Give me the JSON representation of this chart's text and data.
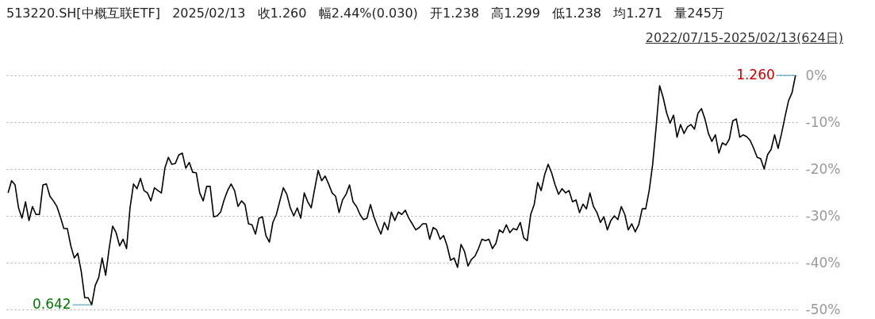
{
  "chart_data": {
    "type": "line",
    "title": "513220.SH[中概互联ETF]   2025/02/13   收1.260   幅2.44%(0.030)   开1.238   高1.299   低1.238   均1.271   量245万",
    "subtitle": "2022/07/15-2025/02/13(624日)",
    "categories": [
      null,
      null,
      null,
      null,
      null,
      null,
      null,
      null,
      null,
      null,
      null,
      null,
      null,
      null,
      null,
      null,
      null,
      null,
      null,
      null,
      null,
      null,
      null,
      null,
      null,
      null,
      null,
      null,
      null,
      null,
      null,
      null,
      null,
      null,
      null,
      null,
      null,
      null,
      null,
      null,
      null,
      null,
      null,
      null,
      null,
      null,
      null,
      null,
      null,
      null,
      null,
      null,
      null,
      null,
      null,
      null,
      null,
      null,
      null,
      null,
      null,
      null,
      null,
      null,
      null,
      null,
      null,
      null,
      null,
      null,
      null,
      null,
      null,
      null,
      null,
      null,
      null,
      null,
      null,
      null,
      null,
      null,
      null,
      null,
      null,
      null,
      null,
      null,
      null,
      null,
      null,
      null,
      null,
      null,
      null,
      null,
      null,
      null,
      null,
      null,
      null,
      null,
      null,
      null,
      null,
      null,
      null,
      null,
      null,
      null,
      null,
      null,
      null,
      null,
      null,
      null,
      null,
      null,
      null,
      null,
      null,
      null,
      null,
      null,
      null,
      null,
      null,
      null,
      null,
      null,
      null,
      null,
      null,
      null,
      null,
      null,
      null,
      null,
      null,
      null,
      null,
      null,
      null,
      null,
      null,
      null,
      null,
      null,
      null,
      null,
      null,
      null,
      null,
      null,
      null,
      null,
      null,
      null,
      null,
      null,
      null,
      null,
      null,
      null,
      null,
      null,
      null,
      null,
      null,
      null,
      null,
      null,
      null,
      null,
      null,
      null,
      null,
      null,
      null,
      null,
      null,
      null,
      null,
      null,
      null,
      null,
      null,
      null,
      null,
      null,
      null,
      null,
      null,
      null,
      null,
      null,
      null,
      null,
      null,
      null,
      null,
      null,
      null,
      null,
      null,
      null,
      null,
      null,
      null,
      null,
      null,
      null,
      null,
      null,
      null,
      null,
      null,
      null,
      null,
      null,
      null,
      null,
      null,
      null,
      null,
      null,
      null
    ],
    "series": [
      {
        "color": "#000000",
        "values": [
          -25.1,
          -22.5,
          -23.4,
          -28.3,
          -30.5,
          -27,
          -31,
          -28,
          -29.7,
          -29.7,
          -23.4,
          -23.2,
          -25.8,
          -26.8,
          -28,
          -30.2,
          -32.7,
          -32.7,
          -36.4,
          -39,
          -38,
          -41.9,
          -47.5,
          -47.5,
          -49.0,
          -44.9,
          -43.2,
          -39,
          -42.7,
          -37,
          -32.2,
          -33.6,
          -36.4,
          -35,
          -37,
          -28.3,
          -23.2,
          -24.2,
          -22,
          -24.6,
          -25.1,
          -26.8,
          -24,
          -24.6,
          -25.1,
          -19.8,
          -17.5,
          -19,
          -18.8,
          -17,
          -16.6,
          -19.8,
          -18.6,
          -20.7,
          -20.8,
          -25.1,
          -26.8,
          -23.7,
          -23.7,
          -30.2,
          -30,
          -29.2,
          -26.6,
          -24.6,
          -23.2,
          -24.6,
          -28,
          -26.8,
          -27.6,
          -31.7,
          -31.9,
          -33.9,
          -30.5,
          -30.2,
          -34.2,
          -35.6,
          -31.4,
          -29.7,
          -26.8,
          -24,
          -25.4,
          -28.3,
          -30,
          -28.3,
          -30.5,
          -25.1,
          -27,
          -28.3,
          -24.2,
          -20.3,
          -22.5,
          -21.5,
          -23.2,
          -25.1,
          -25.8,
          -29.3,
          -26.6,
          -25.4,
          -23.4,
          -27,
          -28,
          -29.7,
          -30.8,
          -30.5,
          -27.6,
          -30.2,
          -32.2,
          -33.9,
          -31.4,
          -33,
          -29.2,
          -31,
          -29.2,
          -29.7,
          -28.8,
          -30.5,
          -31.7,
          -33,
          -32.5,
          -31.7,
          -31.7,
          -35,
          -32.5,
          -33,
          -35,
          -34.2,
          -36.4,
          -39.5,
          -39,
          -41,
          -36.1,
          -37.6,
          -40.7,
          -39.3,
          -38.6,
          -37,
          -35,
          -35.3,
          -35,
          -37,
          -35.9,
          -33,
          -33.6,
          -31.9,
          -33.6,
          -32.7,
          -33,
          -31.4,
          -34.7,
          -35.3,
          -29.7,
          -27.6,
          -22.9,
          -24.6,
          -21.2,
          -19,
          -20.8,
          -23.4,
          -25.4,
          -24.2,
          -25.1,
          -24.6,
          -27,
          -26.6,
          -29.3,
          -27.5,
          -28.5,
          -25.1,
          -28,
          -29.3,
          -31.4,
          -30.2,
          -33,
          -31,
          -30,
          -30.8,
          -28,
          -29.7,
          -33,
          -31.7,
          -33.4,
          -31.9,
          -28.5,
          -28.5,
          -24.6,
          -19,
          -11,
          -2.2,
          -4.7,
          -8,
          -10.2,
          -8.5,
          -13.2,
          -10.5,
          -12.4,
          -11,
          -10.5,
          -11.5,
          -8.1,
          -7.1,
          -9.3,
          -12.4,
          -14.1,
          -12.7,
          -16.6,
          -14.4,
          -14.9,
          -13.6,
          -9.7,
          -9.3,
          -13.2,
          -12.7,
          -13.1,
          -13.9,
          -15.6,
          -17.5,
          -17.8,
          -20,
          -16.9,
          -15.8,
          -12.7,
          -15.6,
          -12.4,
          -8.8,
          -5.4,
          -3.7,
          0
        ]
      }
    ],
    "ylim": [
      -50,
      0
    ],
    "yticks": [
      {
        "value": 0,
        "label": "0%"
      },
      {
        "value": -10,
        "label": "-10%"
      },
      {
        "value": -20,
        "label": "-20%"
      },
      {
        "value": -30,
        "label": "-30%"
      },
      {
        "value": -40,
        "label": "-40%"
      },
      {
        "value": -50,
        "label": "-50%"
      }
    ],
    "grid": "y",
    "annotations": [
      "0.642",
      "1.260"
    ]
  }
}
